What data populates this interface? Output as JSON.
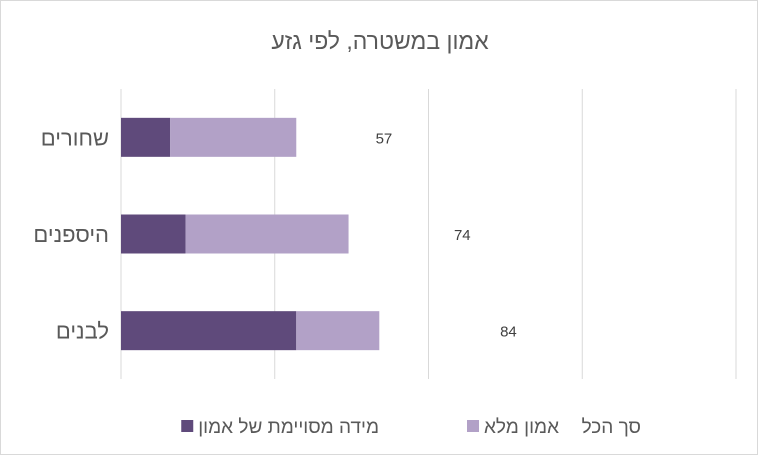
{
  "chart_data": {
    "type": "bar",
    "orientation": "horizontal",
    "stacked": true,
    "title": "אמון במשטרה, לפי גזע",
    "categories": [
      "שחורים",
      "היספנים",
      "לבנים"
    ],
    "series": [
      {
        "name": "מידה מסויימת של אמון",
        "values": [
          16,
          21,
          57
        ],
        "color": "#5f4a7b"
      },
      {
        "name": "אמון מלא",
        "values": [
          41,
          53,
          27
        ],
        "color": "#b2a1c7"
      },
      {
        "name": "סך הכל",
        "values": [
          57,
          74,
          84
        ],
        "color": "none",
        "data_labels": true
      }
    ],
    "xlim": [
      0,
      200
    ],
    "x_gridlines": [
      0,
      50,
      100,
      150,
      200
    ],
    "x_tick_labels_shown": false,
    "grid": true,
    "legend": "bottom"
  }
}
